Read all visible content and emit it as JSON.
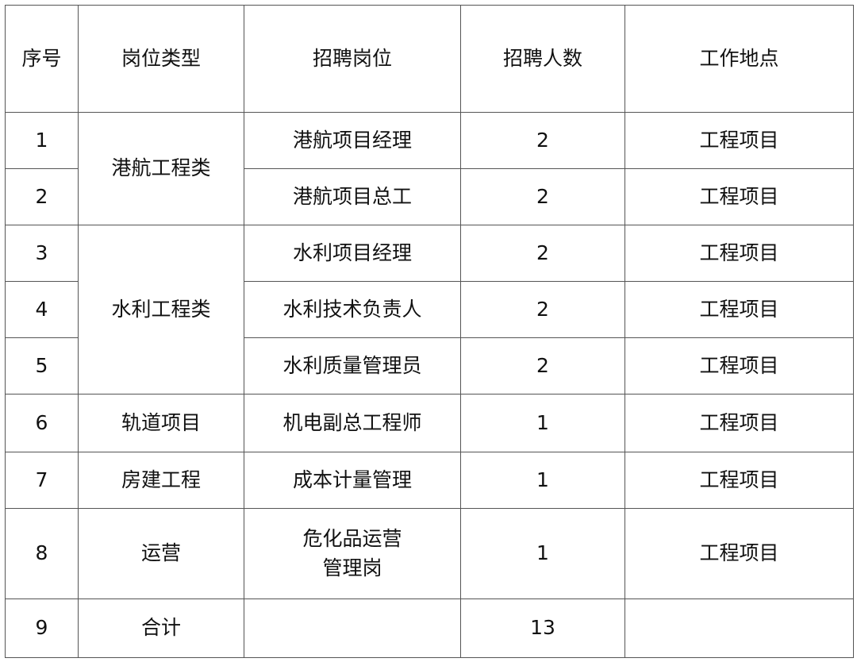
{
  "table": {
    "headers": [
      "序号",
      "岗位类型",
      "招聘岗位",
      "招聘人数",
      "工作地点"
    ],
    "groups": [
      "港航工程类",
      "水利工程类",
      "轨道项目",
      "房建工程",
      "运营"
    ],
    "rows": [
      {
        "no": "1",
        "position": "港航项目经理",
        "count": "2",
        "location": "工程项目"
      },
      {
        "no": "2",
        "position": "港航项目总工",
        "count": "2",
        "location": "工程项目"
      },
      {
        "no": "3",
        "position": "水利项目经理",
        "count": "2",
        "location": "工程项目"
      },
      {
        "no": "4",
        "position": "水利技术负责人",
        "count": "2",
        "location": "工程项目"
      },
      {
        "no": "5",
        "position": "水利质量管理员",
        "count": "2",
        "location": "工程项目"
      },
      {
        "no": "6",
        "position": "机电副总工程师",
        "count": "1",
        "location": "工程项目"
      },
      {
        "no": "7",
        "position": "成本计量管理",
        "count": "1",
        "location": "工程项目"
      },
      {
        "no": "8",
        "position_line1": "危化品运营",
        "position_line2": "管理岗",
        "count": "1",
        "location": "工程项目"
      }
    ],
    "total": {
      "no": "9",
      "label": "合计",
      "count": "13"
    }
  }
}
